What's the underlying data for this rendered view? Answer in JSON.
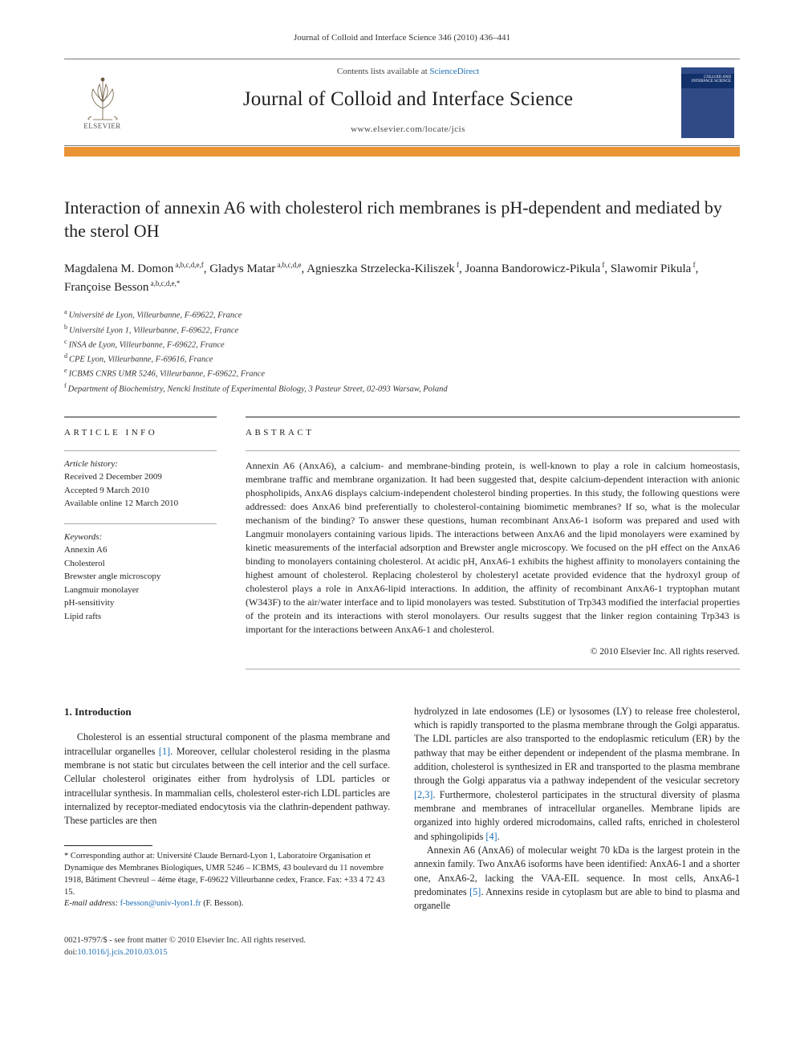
{
  "running_head": "Journal of Colloid and Interface Science 346 (2010) 436–441",
  "masthead": {
    "publisher": "ELSEVIER",
    "contents_prefix": "Contents lists available at ",
    "contents_link": "ScienceDirect",
    "journal_title": "Journal of Colloid and Interface Science",
    "journal_url": "www.elsevier.com/locate/jcis",
    "cover_label": "COLLOID AND INTERFACE SCIENCE",
    "accent_color": "#e99334",
    "cover_bg": "#2f4a86",
    "link_color": "#1b6db2"
  },
  "article": {
    "title": "Interaction of annexin A6 with cholesterol rich membranes is pH-dependent and mediated by the sterol OH",
    "authors_html": "Magdalena M. Domon<sup> a,b,c,d,e,f</sup>, Gladys Matar<sup> a,b,c,d,e</sup>, Agnieszka Strzelecka-Kiliszek<sup> f</sup>, Joanna Bandorowicz-Pikula<sup> f</sup>, Slawomir Pikula<sup> f</sup>, Françoise Besson<sup> a,b,c,d,e,*</sup>",
    "affiliations": [
      {
        "key": "a",
        "text": "Université de Lyon, Villeurbanne, F-69622, France"
      },
      {
        "key": "b",
        "text": "Université Lyon 1, Villeurbanne, F-69622, France"
      },
      {
        "key": "c",
        "text": "INSA de Lyon, Villeurbanne, F-69622, France"
      },
      {
        "key": "d",
        "text": "CPE Lyon, Villeurbanne, F-69616, France"
      },
      {
        "key": "e",
        "text": "ICBMS CNRS UMR 5246, Villeurbanne, F-69622, France"
      },
      {
        "key": "f",
        "text": "Department of Biochemistry, Nencki Institute of Experimental Biology, 3 Pasteur Street, 02-093 Warsaw, Poland"
      }
    ]
  },
  "info": {
    "article_info_head": "ARTICLE INFO",
    "abstract_head": "ABSTRACT",
    "history_label": "Article history:",
    "history": [
      "Received 2 December 2009",
      "Accepted 9 March 2010",
      "Available online 12 March 2010"
    ],
    "keywords_label": "Keywords:",
    "keywords": [
      "Annexin A6",
      "Cholesterol",
      "Brewster angle microscopy",
      "Langmuir monolayer",
      "pH-sensitivity",
      "Lipid rafts"
    ],
    "abstract": "Annexin A6 (AnxA6), a calcium- and membrane-binding protein, is well-known to play a role in calcium homeostasis, membrane traffic and membrane organization. It had been suggested that, despite calcium-dependent interaction with anionic phospholipids, AnxA6 displays calcium-independent cholesterol binding properties. In this study, the following questions were addressed: does AnxA6 bind preferentially to cholesterol-containing biomimetic membranes? If so, what is the molecular mechanism of the binding? To answer these questions, human recombinant AnxA6-1 isoform was prepared and used with Langmuir monolayers containing various lipids. The interactions between AnxA6 and the lipid monolayers were examined by kinetic measurements of the interfacial adsorption and Brewster angle microscopy. We focused on the pH effect on the AnxA6 binding to monolayers containing cholesterol. At acidic pH, AnxA6-1 exhibits the highest affinity to monolayers containing the highest amount of cholesterol. Replacing cholesterol by cholesteryl acetate provided evidence that the hydroxyl group of cholesterol plays a role in AnxA6-lipid interactions. In addition, the affinity of recombinant AnxA6-1 tryptophan mutant (W343F) to the air/water interface and to lipid monolayers was tested. Substitution of Trp343 modified the interfacial properties of the protein and its interactions with sterol monolayers. Our results suggest that the linker region containing Trp343 is important for the interactions between AnxA6-1 and cholesterol.",
    "copyright": "© 2010 Elsevier Inc. All rights reserved."
  },
  "body": {
    "heading": "1. Introduction",
    "col1_para": "Cholesterol is an essential structural component of the plasma membrane and intracellular organelles [1]. Moreover, cellular cholesterol residing in the plasma membrane is not static but circulates between the cell interior and the cell surface. Cellular cholesterol originates either from hydrolysis of LDL particles or intracellular synthesis. In mammalian cells, cholesterol ester-rich LDL particles are internalized by receptor-mediated endocytosis via the clathrin-dependent pathway. These particles are then",
    "col2_para1": "hydrolyzed in late endosomes (LE) or lysosomes (LY) to release free cholesterol, which is rapidly transported to the plasma membrane through the Golgi apparatus. The LDL particles are also transported to the endoplasmic reticulum (ER) by the pathway that may be either dependent or independent of the plasma membrane. In addition, cholesterol is synthesized in ER and transported to the plasma membrane through the Golgi apparatus via a pathway independent of the vesicular secretory [2,3]. Furthermore, cholesterol participates in the structural diversity of plasma membrane and membranes of intracellular organelles. Membrane lipids are organized into highly ordered microdomains, called rafts, enriched in cholesterol and sphingolipids [4].",
    "col2_para2": "Annexin A6 (AnxA6) of molecular weight 70 kDa is the largest protein in the annexin family. Two AnxA6 isoforms have been identified: AnxA6-1 and a shorter one, AnxA6-2, lacking the VAA-EIL sequence. In most cells, AnxA6-1 predominates [5]. Annexins reside in cytoplasm but are able to bind to plasma and organelle",
    "refs": {
      "r1": "[1]",
      "r23": "[2,3]",
      "r4": "[4]",
      "r5": "[5]"
    }
  },
  "footnote": {
    "corr": "* Corresponding author at: Université Claude Bernard-Lyon 1, Laboratoire Organisation et Dynamique des Membranes Biologiques, UMR 5246 – ICBMS, 43 boulevard du 11 novembre 1918, Bâtiment Chevreul – 4ème étage, F-69622 Villeurbanne cedex, France. Fax: +33 4 72 43 15.",
    "email_label": "E-mail address:",
    "email": "f-besson@univ-lyon1.fr",
    "email_person": "(F. Besson)."
  },
  "footer": {
    "line1": "0021-9797/$ - see front matter © 2010 Elsevier Inc. All rights reserved.",
    "doi_prefix": "doi:",
    "doi": "10.1016/j.jcis.2010.03.015"
  }
}
